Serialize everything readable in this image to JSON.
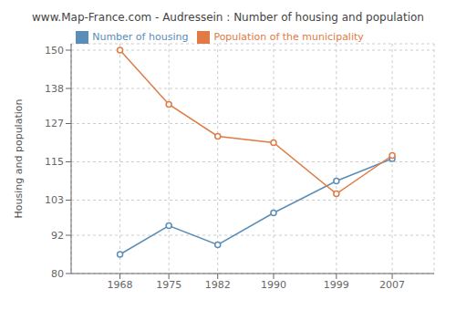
{
  "chart_data": {
    "type": "line",
    "title": "www.Map-France.com - Audressein : Number of housing and population",
    "ylabel": "Housing and population",
    "x": [
      1968,
      1975,
      1982,
      1990,
      1999,
      2007
    ],
    "xlim": [
      1961,
      2013
    ],
    "xticks": [
      1968,
      1975,
      1982,
      1990,
      1999,
      2007
    ],
    "ylim": [
      80,
      152
    ],
    "yticks": [
      80,
      92,
      103,
      115,
      127,
      138,
      150
    ],
    "grid": true,
    "legend": "top",
    "series": [
      {
        "name": "Number of housing",
        "color": "#5b8db8",
        "marker": "circle",
        "values": [
          86,
          95,
          89,
          99,
          109,
          116
        ]
      },
      {
        "name": "Population of the municipality",
        "color": "#e07b45",
        "marker": "circle",
        "values": [
          150,
          133,
          123,
          121,
          105,
          117
        ]
      }
    ]
  }
}
